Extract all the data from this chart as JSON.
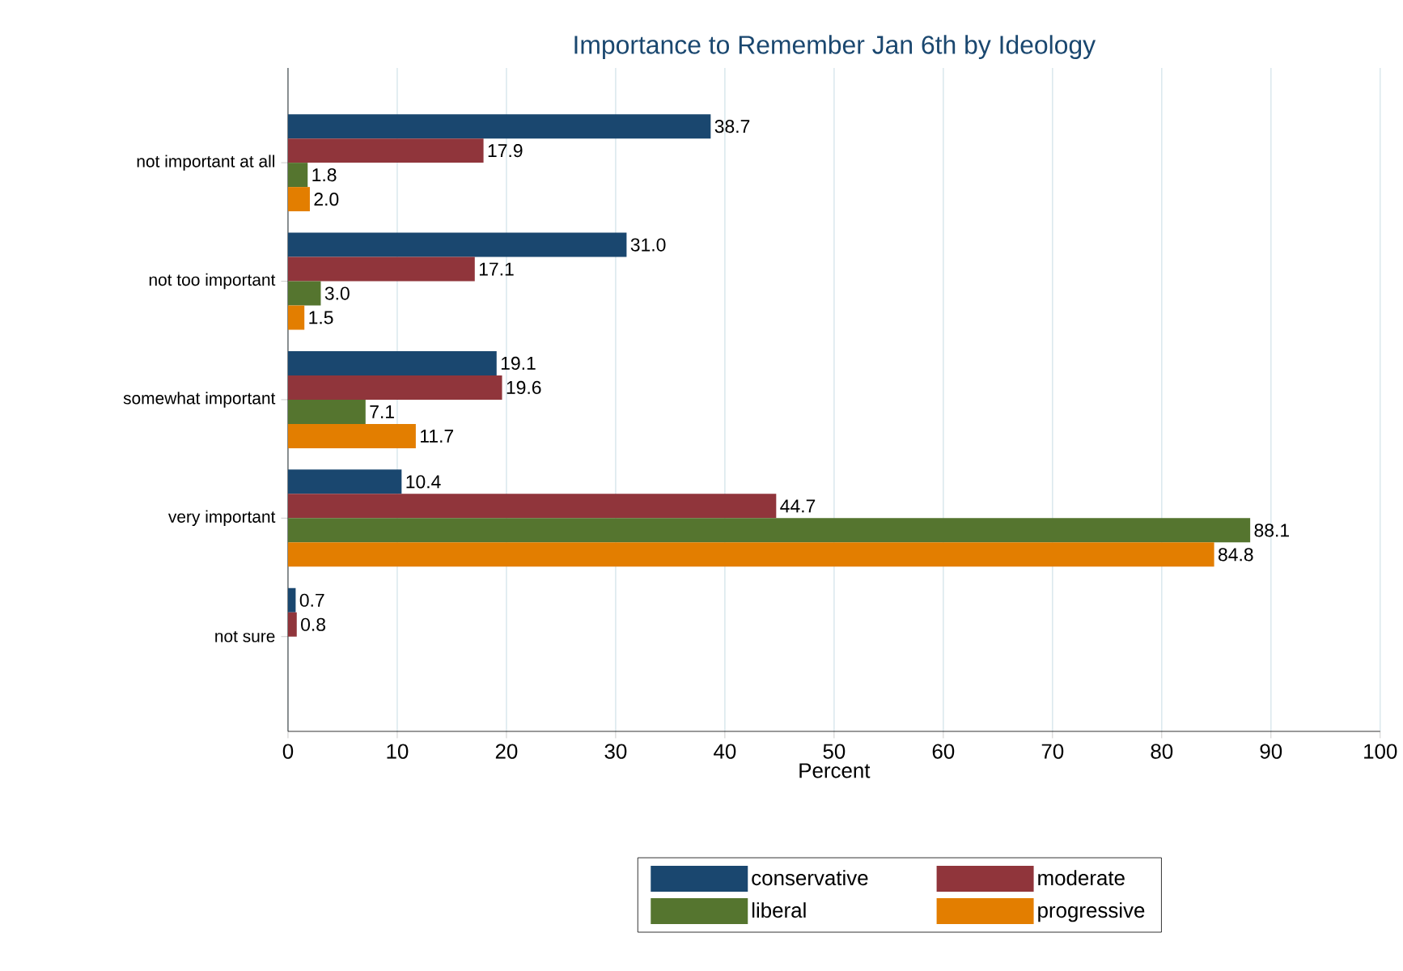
{
  "chart_data": {
    "type": "bar",
    "orientation": "horizontal",
    "title": "Importance to Remember Jan 6th by Ideology",
    "xlabel": "Percent",
    "categories": [
      "not important at all",
      "not too important",
      "somewhat important",
      "very important",
      "not sure"
    ],
    "series": [
      {
        "name": "conservative",
        "color": "#1a476f",
        "values": [
          38.7,
          31.0,
          19.1,
          10.4,
          0.7
        ],
        "value_labels": [
          "38.7",
          "31.0",
          "19.1",
          "10.4",
          "0.7"
        ]
      },
      {
        "name": "moderate",
        "color": "#90353b",
        "values": [
          17.9,
          17.1,
          19.6,
          44.7,
          0.8
        ],
        "value_labels": [
          "17.9",
          "17.1",
          "19.6",
          "44.7",
          "0.8"
        ]
      },
      {
        "name": "liberal",
        "color": "#55752f",
        "values": [
          1.8,
          3.0,
          7.1,
          88.1,
          null
        ],
        "value_labels": [
          "1.8",
          "3.0",
          "7.1",
          "88.1",
          null
        ]
      },
      {
        "name": "progressive",
        "color": "#e37e00",
        "values": [
          2.0,
          1.5,
          11.7,
          84.8,
          null
        ],
        "value_labels": [
          "2.0",
          "1.5",
          "11.7",
          "84.8",
          null
        ]
      }
    ],
    "xlim": [
      0,
      100
    ],
    "xticks": [
      0,
      10,
      20,
      30,
      40,
      50,
      60,
      70,
      80,
      90,
      100
    ],
    "grid": "x",
    "legend": "bottom"
  }
}
